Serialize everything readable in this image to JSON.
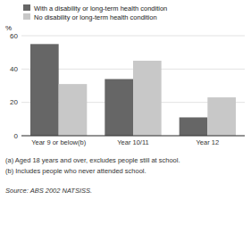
{
  "chart_data": {
    "type": "bar",
    "categories": [
      "Year 9 or below(b)",
      "Year 10/11",
      "Year 12"
    ],
    "series": [
      {
        "name": "With a disability or long-term health condition",
        "color": "#666666",
        "values": [
          55,
          34,
          11
        ]
      },
      {
        "name": "No disability or long-term health condition",
        "color": "#c8c8c8",
        "values": [
          31,
          45,
          23
        ]
      }
    ],
    "y_label": "%",
    "ylim": [
      0,
      60
    ],
    "yticks": [
      0,
      20,
      40,
      60
    ],
    "grid": true,
    "legend": "top",
    "annotations": [
      "(a) Aged 18 years and over, excludes people still at school.",
      "(b) Includes people who never attended school.",
      "Source: ABS 2002 NATSISS."
    ]
  }
}
